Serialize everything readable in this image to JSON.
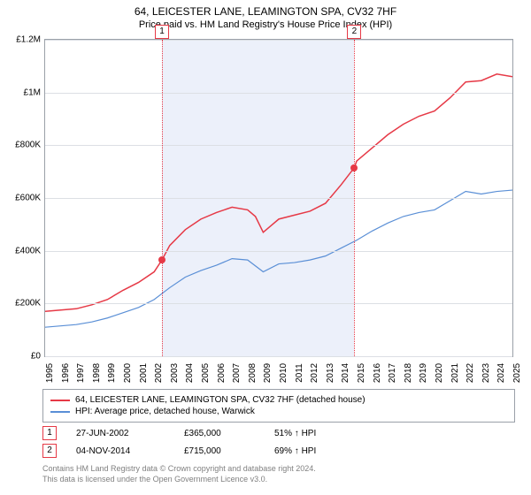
{
  "title": "64, LEICESTER LANE, LEAMINGTON SPA, CV32 7HF",
  "subtitle": "Price paid vs. HM Land Registry's House Price Index (HPI)",
  "chart": {
    "type": "line",
    "xlim": [
      1995,
      2025
    ],
    "ylim": [
      0,
      1200000
    ],
    "ytick_step": 200000,
    "ytick_labels": [
      "£0",
      "£200K",
      "£400K",
      "£600K",
      "£800K",
      "£1M",
      "£1.2M"
    ],
    "xticks": [
      1995,
      1996,
      1997,
      1998,
      1999,
      2000,
      2001,
      2002,
      2003,
      2004,
      2005,
      2006,
      2007,
      2008,
      2009,
      2010,
      2011,
      2012,
      2013,
      2014,
      2015,
      2016,
      2017,
      2018,
      2019,
      2020,
      2021,
      2022,
      2023,
      2024,
      2025
    ],
    "background_color": "#ffffff",
    "grid_color": "#dcdfe4",
    "border_color": "#9aa0a8",
    "band_color": "#ecf0fa",
    "band": {
      "start": 2002.5,
      "end": 2014.85
    },
    "series": [
      {
        "name": "property",
        "color": "#e63946",
        "line_width": 1.5,
        "points": [
          [
            1995,
            170000
          ],
          [
            1996,
            175000
          ],
          [
            1997,
            180000
          ],
          [
            1998,
            195000
          ],
          [
            1999,
            215000
          ],
          [
            2000,
            250000
          ],
          [
            2001,
            280000
          ],
          [
            2002,
            320000
          ],
          [
            2002.5,
            365000
          ],
          [
            2003,
            420000
          ],
          [
            2004,
            480000
          ],
          [
            2005,
            520000
          ],
          [
            2006,
            545000
          ],
          [
            2007,
            565000
          ],
          [
            2008,
            555000
          ],
          [
            2008.5,
            530000
          ],
          [
            2009,
            470000
          ],
          [
            2010,
            520000
          ],
          [
            2011,
            535000
          ],
          [
            2012,
            550000
          ],
          [
            2013,
            580000
          ],
          [
            2014,
            650000
          ],
          [
            2014.85,
            715000
          ],
          [
            2015,
            740000
          ],
          [
            2016,
            790000
          ],
          [
            2017,
            840000
          ],
          [
            2018,
            880000
          ],
          [
            2019,
            910000
          ],
          [
            2020,
            930000
          ],
          [
            2021,
            980000
          ],
          [
            2022,
            1040000
          ],
          [
            2023,
            1045000
          ],
          [
            2024,
            1070000
          ],
          [
            2025,
            1060000
          ]
        ]
      },
      {
        "name": "hpi",
        "color": "#5a8fd6",
        "line_width": 1.2,
        "points": [
          [
            1995,
            110000
          ],
          [
            1996,
            115000
          ],
          [
            1997,
            120000
          ],
          [
            1998,
            130000
          ],
          [
            1999,
            145000
          ],
          [
            2000,
            165000
          ],
          [
            2001,
            185000
          ],
          [
            2002,
            215000
          ],
          [
            2003,
            260000
          ],
          [
            2004,
            300000
          ],
          [
            2005,
            325000
          ],
          [
            2006,
            345000
          ],
          [
            2007,
            370000
          ],
          [
            2008,
            365000
          ],
          [
            2009,
            320000
          ],
          [
            2010,
            350000
          ],
          [
            2011,
            355000
          ],
          [
            2012,
            365000
          ],
          [
            2013,
            380000
          ],
          [
            2014,
            410000
          ],
          [
            2015,
            440000
          ],
          [
            2016,
            475000
          ],
          [
            2017,
            505000
          ],
          [
            2018,
            530000
          ],
          [
            2019,
            545000
          ],
          [
            2020,
            555000
          ],
          [
            2021,
            590000
          ],
          [
            2022,
            625000
          ],
          [
            2023,
            615000
          ],
          [
            2024,
            625000
          ],
          [
            2025,
            630000
          ]
        ]
      }
    ],
    "markers": [
      {
        "label": "1",
        "x": 2002.5,
        "y": 365000,
        "color": "#e63946"
      },
      {
        "label": "2",
        "x": 2014.85,
        "y": 715000,
        "color": "#e63946"
      }
    ]
  },
  "legend": {
    "series1": "64, LEICESTER LANE, LEAMINGTON SPA, CV32 7HF (detached house)",
    "series2": "HPI: Average price, detached house, Warwick",
    "color1": "#e63946",
    "color2": "#5a8fd6"
  },
  "transactions": [
    {
      "label": "1",
      "date": "27-JUN-2002",
      "price": "£365,000",
      "pct": "51% ↑ HPI"
    },
    {
      "label": "2",
      "date": "04-NOV-2014",
      "price": "£715,000",
      "pct": "69% ↑ HPI"
    }
  ],
  "footer": {
    "line1": "Contains HM Land Registry data © Crown copyright and database right 2024.",
    "line2": "This data is licensed under the Open Government Licence v3.0."
  }
}
